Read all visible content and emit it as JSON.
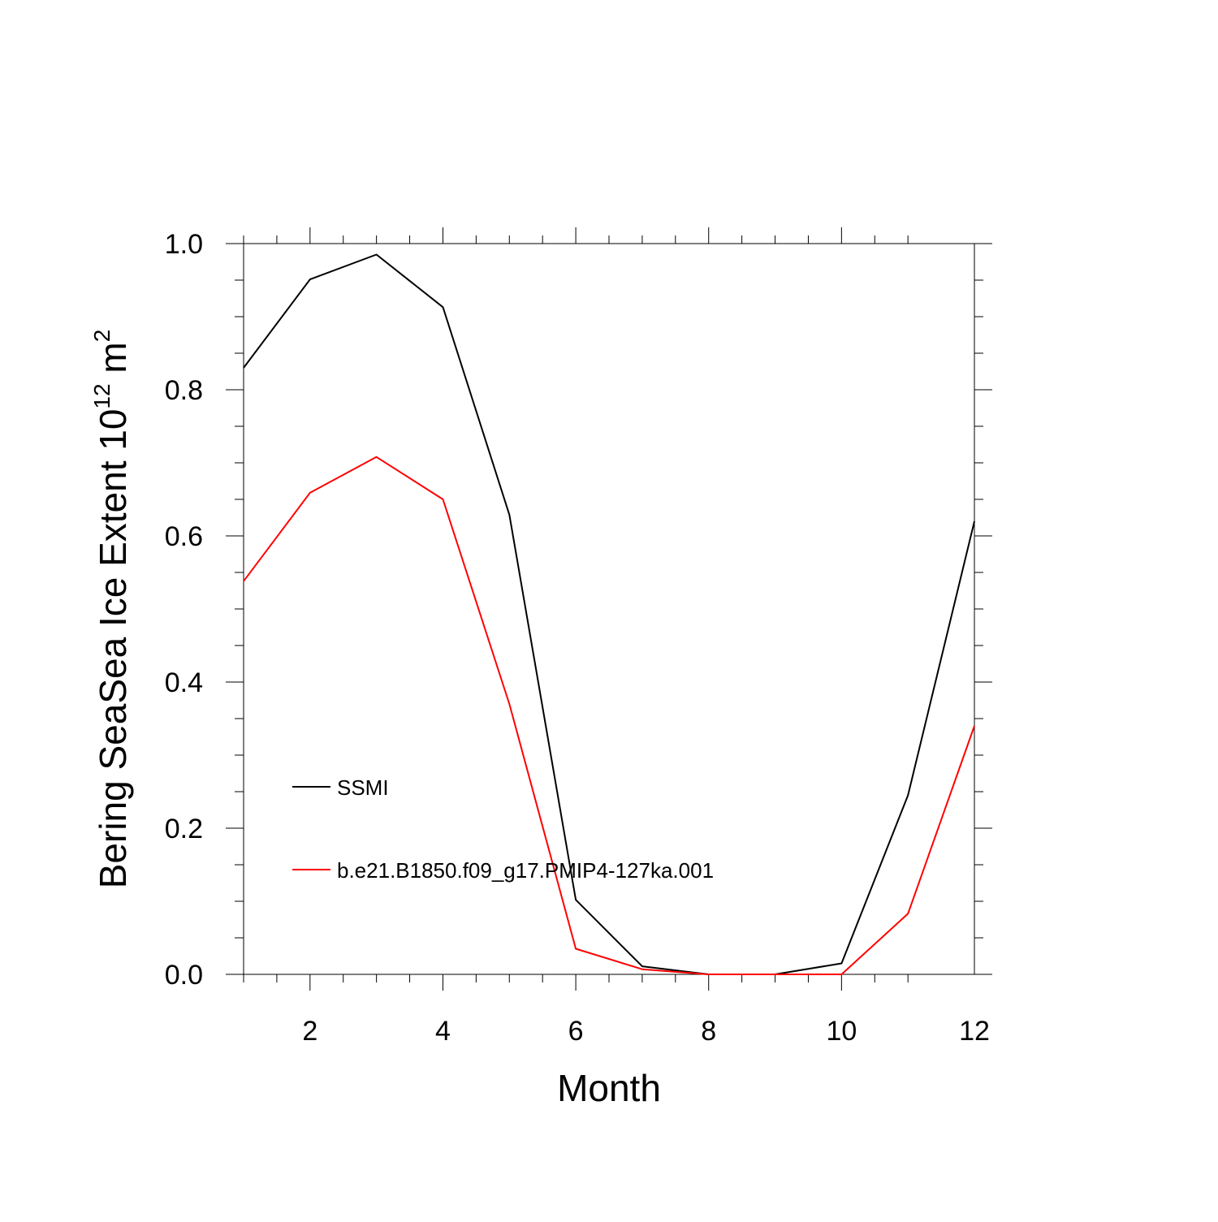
{
  "chart_data": {
    "type": "line",
    "title": "",
    "xlabel": "Month",
    "ylabel": {
      "main": "Bering SeaSea Ice Extent 10",
      "sup1": "12",
      "unit": " m",
      "sup2": "2"
    },
    "xlim": [
      1,
      12
    ],
    "ylim": [
      0,
      1
    ],
    "x_ticks": [
      2,
      4,
      6,
      8,
      10,
      12
    ],
    "x_tick_labels": [
      "2",
      "4",
      "6",
      "8",
      "10",
      "12"
    ],
    "y_ticks": [
      0,
      0.2,
      0.4,
      0.6,
      0.8,
      1.0
    ],
    "y_tick_labels": [
      "0.0",
      "0.2",
      "0.4",
      "0.6",
      "0.8",
      "1.0"
    ],
    "grid": false,
    "legend_position": "lower-left",
    "x": [
      1,
      2,
      3,
      4,
      5,
      6,
      7,
      8,
      9,
      10,
      11,
      12
    ],
    "series": [
      {
        "name": "SSMI",
        "color": "#000000",
        "values": [
          0.83,
          0.951,
          0.985,
          0.913,
          0.629,
          0.102,
          0.011,
          0.0,
          0.0,
          0.015,
          0.245,
          0.62
        ]
      },
      {
        "name": "b.e21.B1850.f09_g17.PMIP4-127ka.001",
        "color": "#ff0000",
        "values": [
          0.538,
          0.659,
          0.708,
          0.65,
          0.37,
          0.035,
          0.007,
          0.0,
          0.0,
          0.0,
          0.083,
          0.34
        ]
      }
    ]
  }
}
